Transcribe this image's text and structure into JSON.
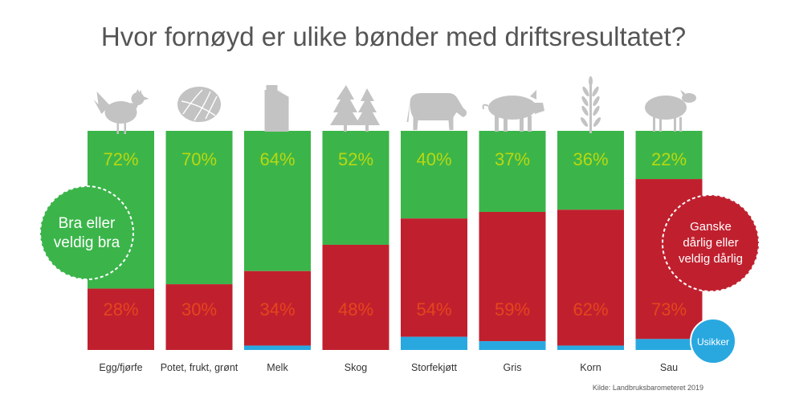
{
  "title": "Hvor fornøyd er ulike bønder med driftsresultatet?",
  "source": "Kilde: Landbruksbarometeret 2019",
  "colors": {
    "satisfied": "#3bb54a",
    "dissatisfied": "#c0202e",
    "unsure": "#29a8e0",
    "pct_top": "#b9d80f",
    "pct_bottom": "#e4451c",
    "icon": "#c3c3c3"
  },
  "legend": {
    "satisfied_label": [
      "Bra eller",
      "veldig bra"
    ],
    "dissatisfied_label": [
      "Ganske",
      "dårlig eller",
      "veldig dårlig"
    ],
    "unsure_label": "Usikker"
  },
  "chart_data": {
    "type": "bar",
    "stacked": true,
    "percent_suffix": "%",
    "categories": [
      "Egg/fjørfe",
      "Potet, frukt, grønt",
      "Melk",
      "Skog",
      "Storfekjøtt",
      "Gris",
      "Korn",
      "Sau"
    ],
    "icons": [
      "chicken-icon",
      "cabbage-icon",
      "milk-carton-icon",
      "trees-icon",
      "cow-icon",
      "pig-icon",
      "wheat-icon",
      "sheep-icon"
    ],
    "series": [
      {
        "name": "Bra eller veldig bra",
        "values": [
          72,
          70,
          64,
          52,
          40,
          37,
          36,
          22
        ],
        "labels": [
          "72%",
          "70%",
          "64%",
          "52%",
          "40%",
          "37%",
          "36%",
          "22%"
        ]
      },
      {
        "name": "Ganske dårlig eller veldig dårlig",
        "values": [
          28,
          30,
          34,
          48,
          54,
          59,
          62,
          73
        ],
        "labels": [
          "28%",
          "30%",
          "34%",
          "48%",
          "54%",
          "59%",
          "62%",
          "73%"
        ]
      },
      {
        "name": "Usikker",
        "values": [
          0,
          0,
          2,
          0,
          6,
          4,
          2,
          5
        ]
      }
    ],
    "ylim": [
      0,
      100
    ],
    "grid": false
  }
}
